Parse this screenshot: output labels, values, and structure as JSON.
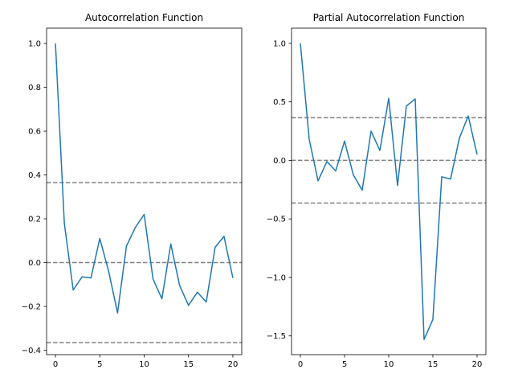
{
  "chart_data": [
    {
      "type": "line",
      "title": "Autocorrelation Function",
      "xlabel": "",
      "ylabel": "",
      "xlim": [
        -1,
        21
      ],
      "ylim": [
        -0.42,
        1.07
      ],
      "xticks": [
        0,
        5,
        10,
        15,
        20
      ],
      "xtick_labels": [
        "0",
        "5",
        "10",
        "15",
        "20"
      ],
      "yticks": [
        -0.4,
        -0.2,
        0.0,
        0.2,
        0.4,
        0.6,
        0.8,
        1.0
      ],
      "ytick_labels": [
        "−0.4",
        "−0.2",
        "0.0",
        "0.2",
        "0.4",
        "0.6",
        "0.8",
        "1.0"
      ],
      "grid": false,
      "series": [
        {
          "color": "#1f77b4",
          "x": [
            0,
            1,
            2,
            3,
            4,
            5,
            6,
            7,
            8,
            9,
            10,
            11,
            12,
            13,
            14,
            15,
            16,
            17,
            18,
            19,
            20
          ],
          "values": [
            1.0,
            0.18,
            -0.125,
            -0.065,
            -0.07,
            0.11,
            -0.04,
            -0.23,
            0.075,
            0.16,
            0.22,
            -0.075,
            -0.165,
            0.085,
            -0.105,
            -0.195,
            -0.135,
            -0.18,
            0.07,
            0.12,
            -0.07
          ]
        }
      ],
      "reference_lines": [
        {
          "y": 0.365,
          "color": "#808080",
          "style": "dashed"
        },
        {
          "y": 0.0,
          "color": "#808080",
          "style": "dashed"
        },
        {
          "y": -0.365,
          "color": "#808080",
          "style": "dashed"
        }
      ]
    },
    {
      "type": "line",
      "title": "Partial Autocorrelation Function",
      "xlabel": "",
      "ylabel": "",
      "xlim": [
        -1,
        21
      ],
      "ylim": [
        -1.66,
        1.13
      ],
      "xticks": [
        0,
        5,
        10,
        15,
        20
      ],
      "xtick_labels": [
        "0",
        "5",
        "10",
        "15",
        "20"
      ],
      "yticks": [
        -1.5,
        -1.0,
        -0.5,
        0.0,
        0.5,
        1.0
      ],
      "ytick_labels": [
        "−1.5",
        "−1.0",
        "−0.5",
        "0.0",
        "0.5",
        "1.0"
      ],
      "grid": false,
      "series": [
        {
          "color": "#1f77b4",
          "x": [
            0,
            1,
            2,
            3,
            4,
            5,
            6,
            7,
            8,
            9,
            10,
            11,
            12,
            13,
            14,
            15,
            16,
            17,
            18,
            19,
            20
          ],
          "values": [
            1.0,
            0.18,
            -0.175,
            -0.01,
            -0.09,
            0.165,
            -0.125,
            -0.255,
            0.25,
            0.085,
            0.53,
            -0.215,
            0.465,
            0.525,
            -1.53,
            -1.36,
            -0.14,
            -0.16,
            0.19,
            0.38,
            0.05
          ]
        }
      ],
      "reference_lines": [
        {
          "y": 0.365,
          "color": "#808080",
          "style": "dashed"
        },
        {
          "y": 0.0,
          "color": "#808080",
          "style": "dashed"
        },
        {
          "y": -0.365,
          "color": "#808080",
          "style": "dashed"
        }
      ]
    }
  ]
}
